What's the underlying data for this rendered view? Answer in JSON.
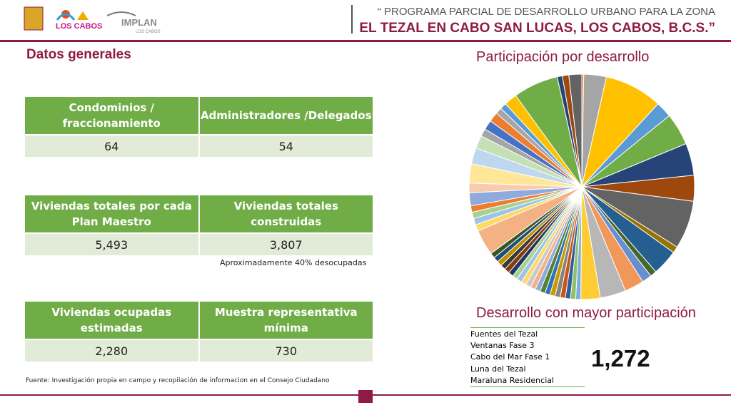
{
  "header": {
    "logos": [
      "LOS CABOS",
      "IMPLAN",
      "LOS CABOS"
    ],
    "line1": "“ PROGRAMA PARCIAL DE DESARROLLO URBANO PARA LA ZONA",
    "line2": "EL TEZAL EN CABO SAN LUCAS, LOS CABOS, B.C.S.”"
  },
  "section_title": "Datos generales",
  "tables": [
    {
      "headers": [
        "Condominios / fraccionamiento",
        "Administradores /Delegados"
      ],
      "values": [
        "64",
        "54"
      ]
    },
    {
      "headers": [
        "Viviendas totales por cada Plan Maestro",
        "Viviendas totales construidas"
      ],
      "values": [
        "5,493",
        "3,807"
      ],
      "note": "Aproximadamente  40% desocupadas"
    },
    {
      "headers": [
        "Viviendas ocupadas estimadas",
        "Muestra representativa mínima"
      ],
      "values": [
        "2,280",
        "730"
      ]
    }
  ],
  "source": "Fuente: Investigación propia en campo y recopilación de informacion en el Consejo Ciudadano",
  "chart_data": {
    "type": "pie",
    "title": "Participación por desarrollo",
    "values": [
      0.3,
      3.5,
      9,
      2.5,
      5,
      5,
      4,
      7.5,
      1,
      4,
      1,
      1.5,
      3,
      4,
      3,
      0.8,
      0.8,
      0.8,
      0.8,
      0.8,
      0.8,
      0.8,
      0.8,
      0.8,
      0.8,
      0.8,
      0.8,
      0.8,
      0.8,
      0.8,
      0.8,
      0.8,
      0.8,
      0.8,
      0.8,
      4,
      1,
      1,
      1,
      1,
      2,
      1.5,
      3,
      2.5,
      2,
      1.2,
      1.5,
      1.5,
      1,
      1,
      2,
      7,
      0.8,
      1,
      2
    ],
    "colors": [
      "#ed7d31",
      "#a5a5a5",
      "#ffc000",
      "#5b9bd5",
      "#70ad47",
      "#264478",
      "#9e480e",
      "#636363",
      "#997300",
      "#255e91",
      "#43682b",
      "#698ed0",
      "#f1975a",
      "#b7b7b7",
      "#ffcd33",
      "#7cafdd",
      "#8cc168",
      "#335aa1",
      "#c65911",
      "#848484",
      "#cc9a00",
      "#2e75b6",
      "#548235",
      "#8faadc",
      "#f4b183",
      "#c9c9c9",
      "#ffd966",
      "#9dc3e6",
      "#a9d18e",
      "#1f3864",
      "#843c0c",
      "#3b3838",
      "#bf9000",
      "#1f4e79",
      "#375623",
      "#f4b183",
      "#ffd966",
      "#9dc3e6",
      "#a9d18e",
      "#ed7d31",
      "#8faadc",
      "#f8cbad",
      "#ffe699",
      "#bdd7ee",
      "#c5e0b4",
      "#a5a5a5",
      "#4472c4",
      "#ed7d31",
      "#a5a5a5",
      "#5b9bd5",
      "#ffc000",
      "#70ad47",
      "#264478",
      "#9e480e",
      "#636363"
    ]
  },
  "highlight": {
    "title": "Desarrollo con mayor participación",
    "items": [
      "Fuentes del Tezal",
      "Ventanas Fase 3",
      "Cabo del Mar Fase 1",
      "Luna del Tezal",
      "Maraluna Residencial"
    ],
    "value": "1,272"
  }
}
